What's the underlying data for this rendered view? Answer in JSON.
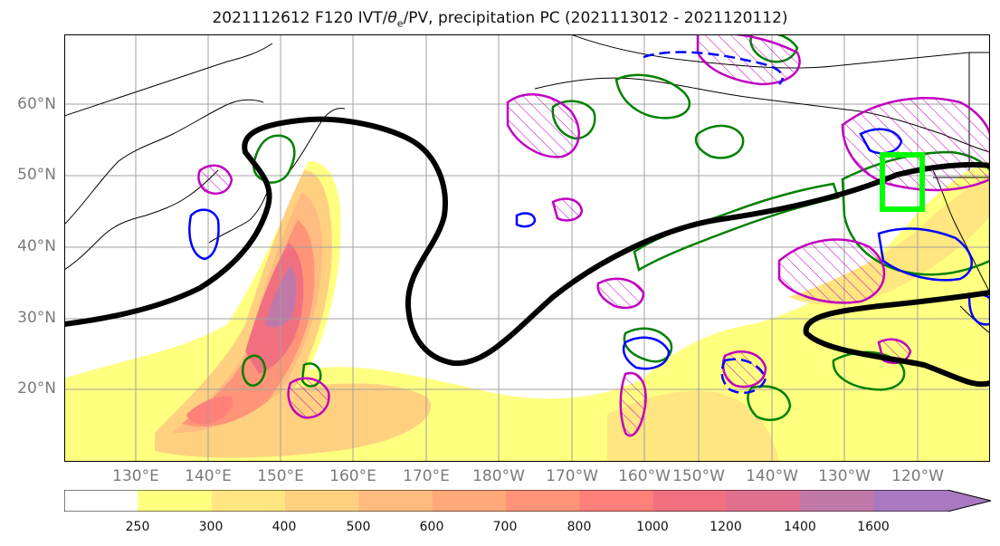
{
  "title": {
    "run": "2021112612 F120 IVT/",
    "theta": "θ",
    "theta_sub": "e",
    "rest": "/PV, precipitation PC (2021113012 - 2021120112)"
  },
  "lat_labels": [
    "60°N",
    "50°N",
    "40°N",
    "30°N",
    "20°N"
  ],
  "lon_labels": [
    "130°E",
    "140°E",
    "150°E",
    "160°E",
    "170°E",
    "180°W",
    "170°W",
    "160°W",
    "150°W",
    "140°W",
    "130°W",
    "120°W"
  ],
  "colorbar": {
    "ticks": [
      "250",
      "300",
      "400",
      "500",
      "600",
      "700",
      "800",
      "1000",
      "1200",
      "1400",
      "1600"
    ],
    "colors": [
      "#ffffff",
      "#ffff80",
      "#ffe680",
      "#ffd080",
      "#ffbb80",
      "#ffa878",
      "#ff9478",
      "#ff8078",
      "#f07080",
      "#e07090",
      "#c078a8",
      "#a878c0"
    ]
  },
  "colors": {
    "pv_contour": "#000000",
    "theta_e": "#008000",
    "precip_pos": "#c000c0",
    "precip_neg": "#0000ff",
    "target_box": "#00ff00"
  }
}
